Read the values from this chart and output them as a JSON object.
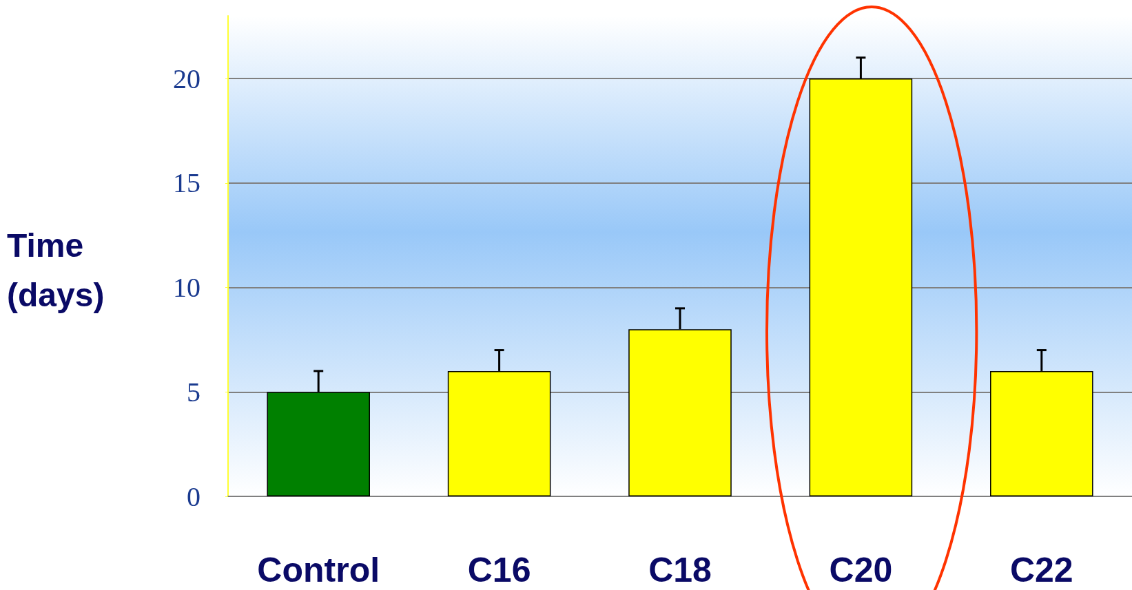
{
  "chart_data": {
    "type": "bar",
    "ylabel": "Time (days)",
    "categories": [
      "Control",
      "C16",
      "C18",
      "C20",
      "C22"
    ],
    "values": [
      5,
      6,
      8,
      20,
      6
    ],
    "colors": [
      "#008000",
      "#ffff00",
      "#ffff00",
      "#ffff00",
      "#ffff00"
    ],
    "errors": [
      [
        5,
        6
      ],
      [
        6,
        7
      ],
      [
        8,
        9
      ],
      [
        20,
        21
      ],
      [
        6,
        7
      ]
    ],
    "ylim": [
      0,
      23
    ],
    "yticks": [
      0,
      5,
      10,
      15,
      20
    ],
    "grid": "y"
  }
}
